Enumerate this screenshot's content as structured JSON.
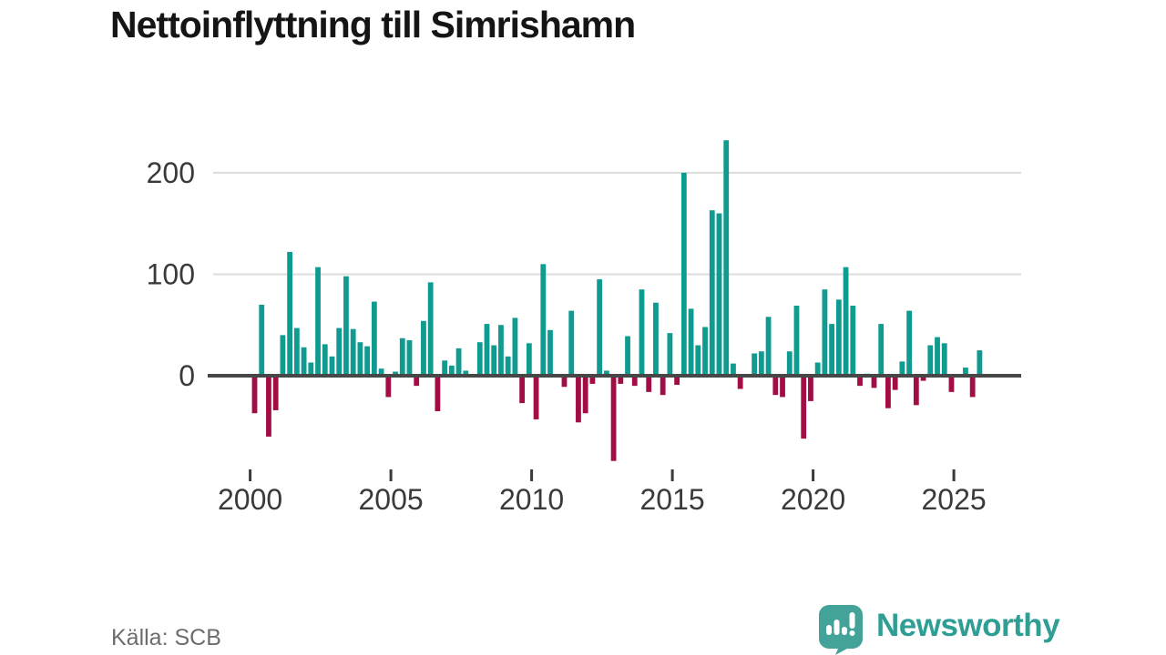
{
  "title": "Nettoinflyttning till Simrishamn",
  "source": {
    "text": "Källa: SCB"
  },
  "brand": {
    "name": "Newsworthy",
    "color": "#2f9e94",
    "icon": "newsworthy-speech-bubble-chart-icon"
  },
  "colors": {
    "positive": "#0f9b90",
    "negative": "#a30d45",
    "axis": "#474747",
    "grid": "#dcdcdc",
    "tick_label": "#3a3a3a",
    "title": "#151515",
    "source": "#6d6d6d",
    "background": "#ffffff"
  },
  "chart_data": {
    "type": "bar",
    "title": "Nettoinflyttning till Simrishamn",
    "series_name": "Nettoinflyttning per kvartal",
    "frequency": "quarterly",
    "period_start": "2000Q1",
    "period_end": "2025Q4",
    "xlabel": "",
    "ylabel": "",
    "x_tick_labels": [
      "2000",
      "2005",
      "2010",
      "2015",
      "2020",
      "2025"
    ],
    "y_ticks": [
      0,
      100,
      200
    ],
    "ylim": [
      -95,
      245
    ],
    "grid": "horizontal-only",
    "legend": "none",
    "quarters": [
      "2000Q1",
      "2000Q2",
      "2000Q3",
      "2000Q4",
      "2001Q1",
      "2001Q2",
      "2001Q3",
      "2001Q4",
      "2002Q1",
      "2002Q2",
      "2002Q3",
      "2002Q4",
      "2003Q1",
      "2003Q2",
      "2003Q3",
      "2003Q4",
      "2004Q1",
      "2004Q2",
      "2004Q3",
      "2004Q4",
      "2005Q1",
      "2005Q2",
      "2005Q3",
      "2005Q4",
      "2006Q1",
      "2006Q2",
      "2006Q3",
      "2006Q4",
      "2007Q1",
      "2007Q2",
      "2007Q3",
      "2007Q4",
      "2008Q1",
      "2008Q2",
      "2008Q3",
      "2008Q4",
      "2009Q1",
      "2009Q2",
      "2009Q3",
      "2009Q4",
      "2010Q1",
      "2010Q2",
      "2010Q3",
      "2010Q4",
      "2011Q1",
      "2011Q2",
      "2011Q3",
      "2011Q4",
      "2012Q1",
      "2012Q2",
      "2012Q3",
      "2012Q4",
      "2013Q1",
      "2013Q2",
      "2013Q3",
      "2013Q4",
      "2014Q1",
      "2014Q2",
      "2014Q3",
      "2014Q4",
      "2015Q1",
      "2015Q2",
      "2015Q3",
      "2015Q4",
      "2016Q1",
      "2016Q2",
      "2016Q3",
      "2016Q4",
      "2017Q1",
      "2017Q2",
      "2017Q3",
      "2017Q4",
      "2018Q1",
      "2018Q2",
      "2018Q3",
      "2018Q4",
      "2019Q1",
      "2019Q2",
      "2019Q3",
      "2019Q4",
      "2020Q1",
      "2020Q2",
      "2020Q3",
      "2020Q4",
      "2021Q1",
      "2021Q2",
      "2021Q3",
      "2021Q4",
      "2022Q1",
      "2022Q2",
      "2022Q3",
      "2022Q4",
      "2023Q1",
      "2023Q2",
      "2023Q3",
      "2023Q4",
      "2024Q1",
      "2024Q2",
      "2024Q3",
      "2024Q4",
      "2025Q1",
      "2025Q2",
      "2025Q3",
      "2025Q4"
    ],
    "values": [
      -37,
      70,
      -60,
      -34,
      40,
      122,
      47,
      28,
      13,
      107,
      31,
      19,
      47,
      98,
      46,
      33,
      29,
      73,
      7,
      -21,
      4,
      37,
      35,
      -10,
      54,
      92,
      -35,
      15,
      10,
      27,
      5,
      0,
      33,
      51,
      30,
      50,
      19,
      57,
      -27,
      32,
      -43,
      110,
      45,
      0,
      -11,
      64,
      -46,
      -37,
      -8,
      95,
      5,
      -84,
      -8,
      39,
      -10,
      85,
      -16,
      72,
      -19,
      42,
      -9,
      200,
      66,
      30,
      48,
      163,
      160,
      232,
      12,
      -13,
      0,
      22,
      24,
      58,
      -19,
      -21,
      24,
      69,
      -62,
      -25,
      13,
      85,
      51,
      75,
      107,
      69,
      -10,
      2,
      -12,
      51,
      -32,
      -14,
      14,
      64,
      -29,
      -5,
      30,
      38,
      32,
      -16,
      0,
      8,
      -21,
      25
    ],
    "positive_color": "#0f9b90",
    "negative_color": "#a30d45"
  }
}
